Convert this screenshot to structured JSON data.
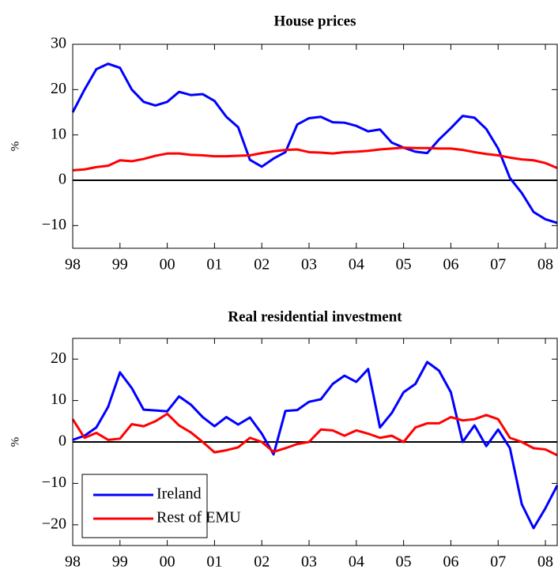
{
  "chart_data": [
    {
      "type": "line",
      "title": "House prices",
      "ylabel": "%",
      "x": [
        1998,
        1998.25,
        1998.5,
        1998.75,
        1999,
        1999.25,
        1999.5,
        1999.75,
        2000,
        2000.25,
        2000.5,
        2000.75,
        2001,
        2001.25,
        2001.5,
        2001.75,
        2002,
        2002.25,
        2002.5,
        2002.75,
        2003,
        2003.25,
        2003.5,
        2003.75,
        2004,
        2004.25,
        2004.5,
        2004.75,
        2005,
        2005.25,
        2005.5,
        2005.75,
        2006,
        2006.25,
        2006.5,
        2006.75,
        2007,
        2007.25,
        2007.5,
        2007.75,
        2008,
        2008.25
      ],
      "series": [
        {
          "name": "Ireland",
          "color": "#0000ff",
          "values": [
            15,
            20,
            24.5,
            25.7,
            24.8,
            20,
            17.3,
            16.5,
            17.3,
            19.5,
            18.8,
            19,
            17.5,
            14,
            11.7,
            4.5,
            3,
            4.8,
            6.2,
            12.3,
            13.7,
            14,
            12.8,
            12.7,
            12,
            10.8,
            11.2,
            8.3,
            7.2,
            6.3,
            6,
            9,
            11.5,
            14.2,
            13.8,
            11.3,
            7,
            0.5,
            -2.8,
            -7,
            -8.6,
            -9.4
          ]
        },
        {
          "name": "Rest of EMU",
          "color": "#ff0000",
          "values": [
            2.2,
            2.4,
            2.9,
            3.2,
            4.4,
            4.2,
            4.7,
            5.4,
            5.9,
            5.9,
            5.6,
            5.5,
            5.3,
            5.3,
            5.4,
            5.5,
            6,
            6.4,
            6.7,
            6.8,
            6.2,
            6.1,
            5.9,
            6.2,
            6.3,
            6.5,
            6.8,
            7,
            7.2,
            7.1,
            7.1,
            7,
            7,
            6.7,
            6.2,
            5.8,
            5.5,
            5,
            4.6,
            4.4,
            3.8,
            2.7
          ]
        }
      ],
      "xlim": [
        1998,
        2008.25
      ],
      "xticks": [
        {
          "value": 1998,
          "label": "98"
        },
        {
          "value": 1999,
          "label": "99"
        },
        {
          "value": 2000,
          "label": "00"
        },
        {
          "value": 2001,
          "label": "01"
        },
        {
          "value": 2002,
          "label": "02"
        },
        {
          "value": 2003,
          "label": "03"
        },
        {
          "value": 2004,
          "label": "04"
        },
        {
          "value": 2005,
          "label": "05"
        },
        {
          "value": 2006,
          "label": "06"
        },
        {
          "value": 2007,
          "label": "07"
        },
        {
          "value": 2008,
          "label": "08"
        }
      ],
      "ylim": [
        -15,
        30
      ],
      "yticks": [
        {
          "value": -10,
          "label": "−10"
        },
        0,
        10,
        20,
        30
      ],
      "grid": false
    },
    {
      "type": "line",
      "title": "Real residential investment",
      "ylabel": "%",
      "x": [
        1998,
        1998.25,
        1998.5,
        1998.75,
        1999,
        1999.25,
        1999.5,
        1999.75,
        2000,
        2000.25,
        2000.5,
        2000.75,
        2001,
        2001.25,
        2001.5,
        2001.75,
        2002,
        2002.25,
        2002.5,
        2002.75,
        2003,
        2003.25,
        2003.5,
        2003.75,
        2004,
        2004.25,
        2004.5,
        2004.75,
        2005,
        2005.25,
        2005.5,
        2005.75,
        2006,
        2006.25,
        2006.5,
        2006.75,
        2007,
        2007.25,
        2007.5,
        2007.75,
        2008,
        2008.25
      ],
      "series": [
        {
          "name": "Ireland",
          "color": "#0000ff",
          "values": [
            0.5,
            1.5,
            3.5,
            8.5,
            16.8,
            13,
            7.8,
            7.6,
            7.4,
            11,
            9,
            6,
            3.8,
            6,
            4.2,
            5.9,
            2,
            -3,
            7.5,
            7.7,
            9.7,
            10.3,
            14,
            16,
            14.5,
            17.6,
            3.5,
            7,
            12,
            14,
            19.3,
            17.2,
            12,
            0,
            4,
            -1,
            3,
            -1.5,
            -15,
            -20.8,
            -16,
            -10.5
          ]
        },
        {
          "name": "Rest of EMU",
          "color": "#ff0000",
          "values": [
            5.5,
            1,
            2.2,
            0.5,
            0.8,
            4.3,
            3.8,
            5,
            6.8,
            4,
            2.3,
            0,
            -2.5,
            -2,
            -1.3,
            1,
            0,
            -2.4,
            -1.5,
            -0.5,
            0,
            3,
            2.8,
            1.5,
            2.8,
            2,
            1,
            1.5,
            0,
            3.5,
            4.5,
            4.5,
            6,
            5.2,
            5.5,
            6.5,
            5.5,
            1,
            0,
            -1.5,
            -1.8,
            -3.2
          ]
        }
      ],
      "xlim": [
        1998,
        2008.25
      ],
      "xticks": [
        {
          "value": 1998,
          "label": "98"
        },
        {
          "value": 1999,
          "label": "99"
        },
        {
          "value": 2000,
          "label": "00"
        },
        {
          "value": 2001,
          "label": "01"
        },
        {
          "value": 2002,
          "label": "02"
        },
        {
          "value": 2003,
          "label": "03"
        },
        {
          "value": 2004,
          "label": "04"
        },
        {
          "value": 2005,
          "label": "05"
        },
        {
          "value": 2006,
          "label": "06"
        },
        {
          "value": 2007,
          "label": "07"
        },
        {
          "value": 2008,
          "label": "08"
        }
      ],
      "ylim": [
        -25,
        25
      ],
      "yticks": [
        {
          "value": -20,
          "label": "−20"
        },
        {
          "value": -10,
          "label": "−10"
        },
        0,
        10,
        20
      ],
      "legend": "lower left",
      "grid": false
    }
  ]
}
